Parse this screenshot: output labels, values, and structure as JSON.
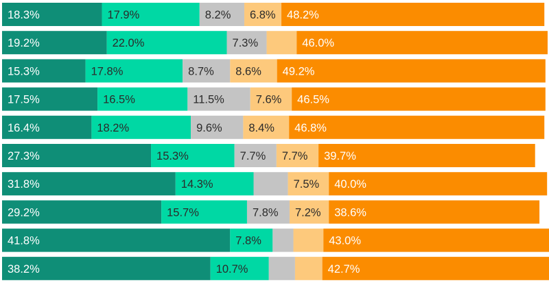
{
  "chart_data": {
    "type": "bar",
    "orientation": "horizontal",
    "stacked": true,
    "normalized": true,
    "xlim": [
      0,
      100
    ],
    "grid": false,
    "legend": "none",
    "series": [
      {
        "color": "#0f8e77",
        "label_color": "#ffffff",
        "values": [
          18.3,
          19.2,
          15.3,
          17.5,
          16.4,
          27.3,
          31.8,
          29.2,
          41.8,
          38.2
        ]
      },
      {
        "color": "#00d8a4",
        "label_color": "#2b2b2b",
        "values": [
          17.9,
          22.0,
          17.8,
          16.5,
          18.2,
          15.3,
          14.3,
          15.7,
          7.8,
          10.7
        ]
      },
      {
        "color": "#c4c4c4",
        "label_color": "#2b2b2b",
        "values": [
          8.2,
          7.3,
          8.7,
          11.5,
          9.6,
          7.7,
          6.3,
          7.8,
          3.8,
          4.8
        ]
      },
      {
        "color": "#fdc97c",
        "label_color": "#2b2b2b",
        "values": [
          6.8,
          5.5,
          8.6,
          7.6,
          8.4,
          7.7,
          7.5,
          7.2,
          5.5,
          5.0
        ]
      },
      {
        "color": "#fb8c00",
        "label_color": "#ffffff",
        "values": [
          48.2,
          46.0,
          49.2,
          46.5,
          46.8,
          39.7,
          40.0,
          38.6,
          43.0,
          42.7
        ]
      }
    ],
    "labels": [
      [
        "18.3%",
        "17.9%",
        "8.2%",
        "6.8%",
        "48.2%"
      ],
      [
        "19.2%",
        "22.0%",
        "7.3%",
        "",
        "46.0%"
      ],
      [
        "15.3%",
        "17.8%",
        "8.7%",
        "8.6%",
        "49.2%"
      ],
      [
        "17.5%",
        "16.5%",
        "11.5%",
        "7.6%",
        "46.5%"
      ],
      [
        "16.4%",
        "18.2%",
        "9.6%",
        "8.4%",
        "46.8%"
      ],
      [
        "27.3%",
        "15.3%",
        "7.7%",
        "7.7%",
        "39.7%"
      ],
      [
        "31.8%",
        "14.3%",
        "",
        "7.5%",
        "40.0%"
      ],
      [
        "29.2%",
        "15.7%",
        "7.8%",
        "7.2%",
        "38.6%"
      ],
      [
        "41.8%",
        "7.8%",
        "",
        "",
        "43.0%"
      ],
      [
        "38.2%",
        "10.7%",
        "",
        "",
        "42.7%"
      ]
    ]
  }
}
